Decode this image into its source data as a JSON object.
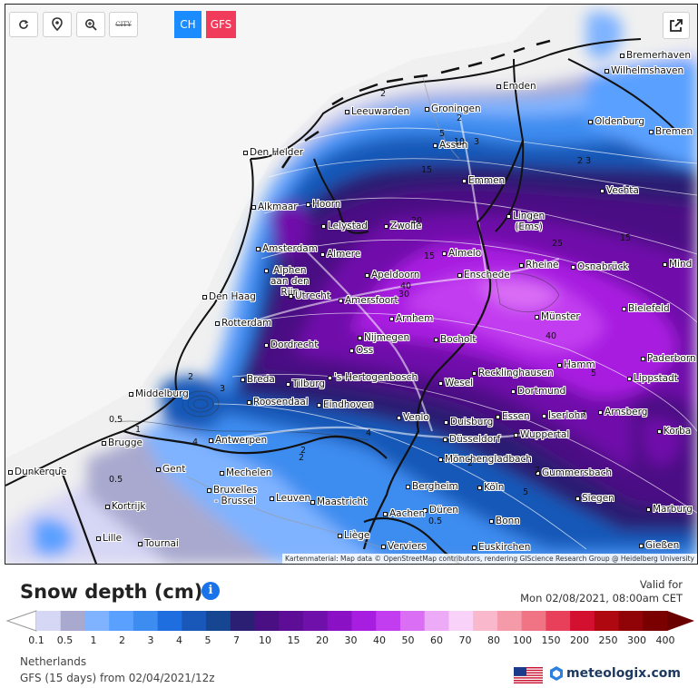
{
  "toolbar": {
    "reload_icon": "reload-icon",
    "locate_icon": "map-pin-icon",
    "zoom_icon": "zoom-in-icon",
    "city_label": "CITY",
    "models": [
      {
        "label": "CH",
        "color": "#1a8cff"
      },
      {
        "label": "GFS",
        "color": "#f03c5a"
      }
    ],
    "share_icon": "share-icon"
  },
  "cities": [
    {
      "name": "Bremerhaven"
    },
    {
      "name": "Wilhelmshaven"
    },
    {
      "name": "Emden"
    },
    {
      "name": "Groningen"
    },
    {
      "name": "Leeuwarden"
    },
    {
      "name": "Oldenburg"
    },
    {
      "name": "Bremen"
    },
    {
      "name": "Den Helder"
    },
    {
      "name": "Assen"
    },
    {
      "name": "Emmen"
    },
    {
      "name": "Vechta"
    },
    {
      "name": "Alkmaar"
    },
    {
      "name": "Hoorn"
    },
    {
      "name": "Lelystad"
    },
    {
      "name": "Zwolle"
    },
    {
      "name": "Lingen\n(Ems)"
    },
    {
      "name": "Amsterdam"
    },
    {
      "name": "Almere"
    },
    {
      "name": "Almelo"
    },
    {
      "name": "Rheine"
    },
    {
      "name": "Osnabrück"
    },
    {
      "name": "Mind"
    },
    {
      "name": "Alphen\naan den\nRijn"
    },
    {
      "name": "Apeldoorn"
    },
    {
      "name": "Enschede"
    },
    {
      "name": "Den Haag"
    },
    {
      "name": "Utrecht"
    },
    {
      "name": "Amersfoort"
    },
    {
      "name": "Bielefeld"
    },
    {
      "name": "Rotterdam"
    },
    {
      "name": "Arnhem"
    },
    {
      "name": "Münster"
    },
    {
      "name": "Nijmegen"
    },
    {
      "name": "Dordrecht"
    },
    {
      "name": "Oss"
    },
    {
      "name": "Bocholt"
    },
    {
      "name": "Paderborn"
    },
    {
      "name": "Hamm"
    },
    {
      "name": "Breda"
    },
    {
      "name": "Tilburg"
    },
    {
      "name": "'s-Hertogenbosch"
    },
    {
      "name": "Recklinghausen"
    },
    {
      "name": "Lippstadt"
    },
    {
      "name": "Middelburg"
    },
    {
      "name": "Wesel"
    },
    {
      "name": "Roosendaal"
    },
    {
      "name": "Dortmund"
    },
    {
      "name": "Eindhoven"
    },
    {
      "name": "Venlo"
    },
    {
      "name": "Essen"
    },
    {
      "name": "Iserlohn"
    },
    {
      "name": "Arnsberg"
    },
    {
      "name": "Duisburg"
    },
    {
      "name": "Korba"
    },
    {
      "name": "Wuppertal"
    },
    {
      "name": "Antwerpen"
    },
    {
      "name": "Brugge"
    },
    {
      "name": "Düsseldorf"
    },
    {
      "name": "Gent"
    },
    {
      "name": "Dunkerque"
    },
    {
      "name": "Mönchengladbach"
    },
    {
      "name": "Gummersbach"
    },
    {
      "name": "Mechelen"
    },
    {
      "name": "Bruxelles\n- Brussel"
    },
    {
      "name": "Bergheim"
    },
    {
      "name": "Köln"
    },
    {
      "name": "Leuven"
    },
    {
      "name": "Maastricht"
    },
    {
      "name": "Siegen"
    },
    {
      "name": "Kortrijk"
    },
    {
      "name": "Düren"
    },
    {
      "name": "Aachen"
    },
    {
      "name": "Marburg"
    },
    {
      "name": "Bonn"
    },
    {
      "name": "Lille"
    },
    {
      "name": "Liège"
    },
    {
      "name": "Tournai"
    },
    {
      "name": "Verviers"
    },
    {
      "name": "Euskirchen"
    },
    {
      "name": "Gießen"
    }
  ],
  "contour_labels": [
    "2",
    "2",
    "5",
    "10",
    "3",
    "15",
    "2 3",
    "15",
    "20",
    "25",
    "15",
    "30",
    "40",
    "40",
    "2",
    "3",
    "4",
    "4",
    "2",
    "0.5",
    "1",
    "0.5",
    "5",
    "2",
    "0.5",
    "7",
    "5",
    "7",
    "2"
  ],
  "credit": "Kartenmaterial: Map data © OpenStreetMap contributors, rendering GIScience Research Group @ Heidelberg University",
  "legend": {
    "title": "Snow depth (cm)",
    "info_icon": "info-icon",
    "valid_label": "Valid for",
    "valid_value": "Mon 02/08/2021, 08:00am CET",
    "colors": [
      "#d6d6f5",
      "#a9a9cf",
      "#7fb3ff",
      "#5aa0ff",
      "#3d8cf0",
      "#1f6ee0",
      "#1958b8",
      "#164592",
      "#2a1f72",
      "#4b0f84",
      "#5e0e96",
      "#7010aa",
      "#8a12c4",
      "#a81ee0",
      "#c23cf0",
      "#da6ef5",
      "#ecaaf7",
      "#f8d2f8",
      "#f9b8cc",
      "#f59aa8",
      "#f07484",
      "#e8405a",
      "#d41030",
      "#b00810",
      "#900408",
      "#7a0000"
    ],
    "ticks": [
      "0.1",
      "0.5",
      "1",
      "2",
      "3",
      "4",
      "5",
      "7",
      "10",
      "15",
      "20",
      "30",
      "40",
      "50",
      "60",
      "70",
      "80",
      "100",
      "150",
      "200",
      "250",
      "300",
      "400"
    ]
  },
  "footer": {
    "region": "Netherlands",
    "model_run": "GFS (15 days) from 02/04/2021/12z",
    "flag_icon": "us-flag-icon",
    "brand_icon": "meteologix-logo-icon",
    "brand": "meteologix.com"
  }
}
